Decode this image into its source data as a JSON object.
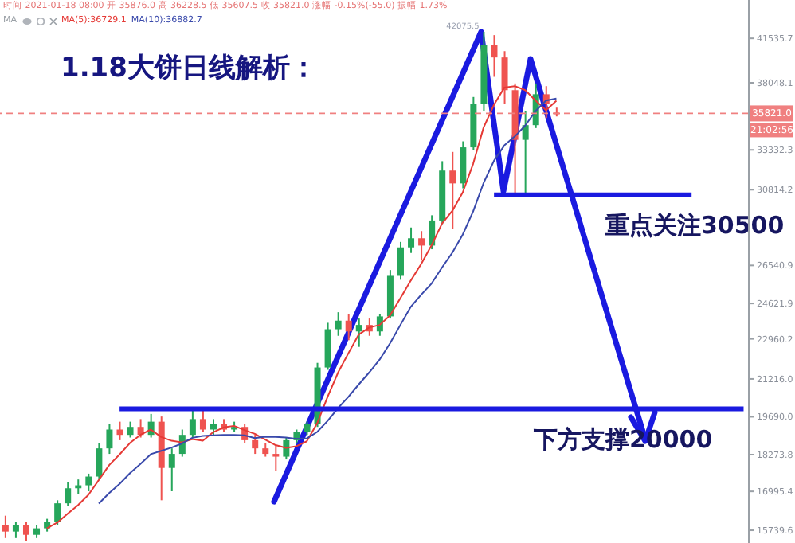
{
  "chart_data": {
    "type": "candlestick",
    "title": "1.18大饼日线解析：",
    "categories": [
      null,
      null,
      null,
      null,
      null,
      null,
      null,
      null,
      null,
      null,
      null,
      null,
      null,
      null,
      null,
      null,
      null,
      null,
      null,
      null,
      null,
      null,
      null,
      null,
      null,
      null,
      null,
      null,
      null,
      null,
      null,
      null,
      null,
      null,
      null,
      null,
      null,
      null,
      null,
      null,
      null,
      null,
      null,
      null,
      null,
      null,
      null,
      null,
      null,
      null,
      null,
      null,
      null,
      null,
      null,
      null,
      null,
      null,
      null,
      null,
      null,
      null,
      null,
      null,
      null,
      null,
      null,
      null,
      null,
      null,
      null,
      null
    ],
    "ohlc": [
      [
        15900,
        16200,
        15500,
        15700
      ],
      [
        15700,
        16000,
        15500,
        15900
      ],
      [
        15900,
        16000,
        15400,
        15600
      ],
      [
        15600,
        15900,
        15500,
        15800
      ],
      [
        15800,
        16100,
        15700,
        16000
      ],
      [
        16000,
        16700,
        15900,
        16600
      ],
      [
        16600,
        17300,
        16500,
        17100
      ],
      [
        17100,
        17400,
        16900,
        17200
      ],
      [
        17200,
        17600,
        17000,
        17500
      ],
      [
        17500,
        18700,
        17400,
        18500
      ],
      [
        18500,
        19400,
        18300,
        19200
      ],
      [
        19200,
        19500,
        18800,
        19000
      ],
      [
        19000,
        19500,
        18900,
        19300
      ],
      [
        19300,
        19600,
        18900,
        19000
      ],
      [
        19000,
        19800,
        18900,
        19500
      ],
      [
        19500,
        19700,
        16700,
        17800
      ],
      [
        17800,
        18500,
        17000,
        18300
      ],
      [
        18300,
        19200,
        18200,
        19000
      ],
      [
        19000,
        20000,
        18900,
        19600
      ],
      [
        19600,
        20000,
        19100,
        19200
      ],
      [
        19200,
        19600,
        19000,
        19400
      ],
      [
        19400,
        19600,
        19100,
        19200
      ],
      [
        19200,
        19500,
        19100,
        19300
      ],
      [
        19300,
        19400,
        18700,
        18800
      ],
      [
        18800,
        19000,
        18300,
        18500
      ],
      [
        18500,
        18700,
        18200,
        18300
      ],
      [
        18300,
        18600,
        17700,
        18200
      ],
      [
        18200,
        18900,
        18100,
        18800
      ],
      [
        18800,
        19200,
        18700,
        19100
      ],
      [
        19100,
        19500,
        19000,
        19400
      ],
      [
        19400,
        21900,
        19300,
        21700
      ],
      [
        21700,
        23700,
        21600,
        23400
      ],
      [
        23400,
        24200,
        23100,
        23800
      ],
      [
        23800,
        24100,
        22900,
        23300
      ],
      [
        23300,
        23900,
        22600,
        23600
      ],
      [
        23600,
        23900,
        23100,
        23300
      ],
      [
        23300,
        24100,
        23100,
        24000
      ],
      [
        24000,
        26300,
        23900,
        26000
      ],
      [
        26000,
        27800,
        25800,
        27500
      ],
      [
        27500,
        28600,
        27200,
        28000
      ],
      [
        28000,
        28400,
        26800,
        27600
      ],
      [
        27600,
        29300,
        27400,
        29000
      ],
      [
        29000,
        32600,
        28800,
        32000
      ],
      [
        32000,
        33200,
        28500,
        31200
      ],
      [
        31200,
        33900,
        30900,
        33500
      ],
      [
        33500,
        37000,
        33300,
        36500
      ],
      [
        36500,
        42075.5,
        36000,
        41000
      ],
      [
        41000,
        41800,
        38500,
        40000
      ],
      [
        40000,
        40500,
        36500,
        37500
      ],
      [
        37500,
        38000,
        30400,
        34000
      ],
      [
        34000,
        36000,
        30600,
        35000
      ],
      [
        35000,
        38000,
        34800,
        37200
      ],
      [
        37200,
        37800,
        35500,
        36500
      ],
      [
        35876.0,
        36228.5,
        35607.5,
        35821.0
      ],
      null,
      null,
      null,
      null,
      null,
      null,
      null,
      null,
      null,
      null,
      null,
      null,
      null,
      null,
      null,
      null,
      null,
      null
    ],
    "colors": [
      "#ef5350",
      "#26a65b",
      "#ef5350",
      "#26a65b",
      "#26a65b",
      "#26a65b",
      "#26a65b",
      "#26a65b",
      "#26a65b",
      "#26a65b",
      "#26a65b",
      "#ef5350",
      "#26a65b",
      "#ef5350",
      "#26a65b",
      "#ef5350",
      "#26a65b",
      "#26a65b",
      "#26a65b",
      "#ef5350",
      "#26a65b",
      "#ef5350",
      "#26a65b",
      "#ef5350",
      "#ef5350",
      "#ef5350",
      "#ef5350",
      "#26a65b",
      "#26a65b",
      "#26a65b",
      "#26a65b",
      "#26a65b",
      "#26a65b",
      "#ef5350",
      "#26a65b",
      "#ef5350",
      "#26a65b",
      "#26a65b",
      "#26a65b",
      "#26a65b",
      "#ef5350",
      "#26a65b",
      "#26a65b",
      "#ef5350",
      "#26a65b",
      "#26a65b",
      "#26a65b",
      "#ef5350",
      "#ef5350",
      "#ef5350",
      "#26a65b",
      "#26a65b",
      "#ef5350",
      "#ef5350",
      null,
      null,
      null,
      null,
      null,
      null,
      null,
      null,
      null,
      null,
      null,
      null,
      null,
      null,
      null,
      null,
      null,
      null
    ],
    "series": [
      {
        "name": "MA(5):36729.1",
        "type": "line",
        "color": "#e53935",
        "values": [
          null,
          null,
          null,
          null,
          15800,
          15980,
          16260,
          16540,
          16880,
          17380,
          17900,
          18280,
          18700,
          19000,
          19200,
          18920,
          18780,
          18720,
          18840,
          18780,
          19100,
          19280,
          19340,
          19180,
          19040,
          18820,
          18620,
          18520,
          18580,
          18760,
          19440,
          20480,
          21480,
          22320,
          23160,
          23480,
          23600,
          24040,
          24880,
          25760,
          26620,
          27620,
          28820,
          29560,
          30660,
          32440,
          34840,
          36440,
          37700,
          37800,
          37500,
          36740,
          36040,
          36729.1,
          null,
          null,
          null,
          null,
          null,
          null,
          null,
          null,
          null,
          null,
          null,
          null,
          null,
          null,
          null,
          null,
          null,
          null
        ]
      },
      {
        "name": "MA(10):36882.7",
        "type": "line",
        "color": "#3949ab",
        "values": [
          null,
          null,
          null,
          null,
          null,
          null,
          null,
          null,
          null,
          16590,
          16940,
          17250,
          17620,
          17940,
          18290,
          18410,
          18530,
          18680,
          18890,
          18960,
          18980,
          19000,
          19000,
          18980,
          18880,
          18930,
          18920,
          18900,
          18850,
          18870,
          19110,
          19530,
          20030,
          20480,
          20990,
          21490,
          22040,
          22760,
          23600,
          24460,
          25050,
          25610,
          26430,
          27220,
          28210,
          29530,
          31230,
          32630,
          33630,
          34230,
          34970,
          35990,
          36740,
          36882.7,
          null,
          null,
          null,
          null,
          null,
          null,
          null,
          null,
          null,
          null,
          null,
          null,
          null,
          null,
          null,
          null,
          null,
          null
        ]
      }
    ],
    "log": true,
    "ylim": [
      15350,
      44800
    ],
    "yticks": [
      41535.7,
      38048.1,
      33332.3,
      30814.2,
      26540.9,
      24621.9,
      22960.2,
      {
        "value": 21216,
        "label": "21216.0"
      },
      {
        "value": 19690,
        "label": "19690.0"
      },
      18273.8,
      16995.4,
      15739.6
    ],
    "tick_labels": "y",
    "legend": "top",
    "ref_lines": [
      {
        "axis": "y",
        "value": 35821.0,
        "label": "35821.0",
        "color": "#f08080",
        "line_style": "dashed"
      },
      {
        "axis": "y",
        "value": 30500,
        "label": "重点关注30500",
        "color": "#1a1ae0",
        "line_style": "solid"
      },
      {
        "axis": "y",
        "value": 20000,
        "label": "下方支撑20000",
        "color": "#1a1ae0",
        "line_style": "solid"
      }
    ],
    "annotations": [
      "时间 2021-01-18 08:00 开 35876.0 高 36228.5 低 35607.5 收 35821.0 涨幅 -0.15%(-55.0) 振幅 1.73%",
      "MA",
      "42075.5",
      "21:02:56"
    ]
  }
}
